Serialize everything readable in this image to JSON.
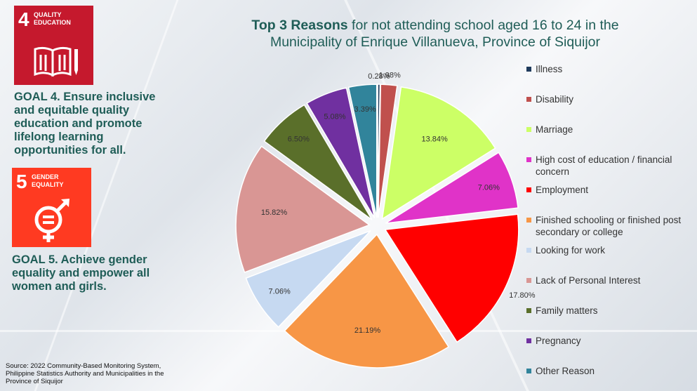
{
  "sdg4": {
    "number": "4",
    "label_line1": "QUALITY",
    "label_line2": "EDUCATION",
    "color": "#c5192d",
    "icon": "book-pencil-icon"
  },
  "sdg5": {
    "number": "5",
    "label_line1": "GENDER",
    "label_line2": "EQUALITY",
    "color": "#ff3a21",
    "icon": "gender-equality-icon"
  },
  "goal4": {
    "lines": [
      "GOAL 4. Ensure inclusive",
      "and equitable quality",
      "education and promote",
      "lifelong learning",
      "opportunities for all."
    ]
  },
  "goal5": {
    "lines": [
      "GOAL 5. Achieve gender",
      "equality and empower all",
      "women and girls."
    ]
  },
  "title": {
    "bold": "Top 3 Reasons",
    "rest_line1": " for not attending school aged 16 to 24 in the",
    "line2": "Municipality of Enrique Villanueva, Province of Siquijor"
  },
  "source": "Source: 2022 Community-Based Monitoring System, Philippine Statistics Authority and Municipalities in the Province of Siquijor",
  "chart_data": {
    "type": "pie",
    "title": "Top 3 Reasons for not attending school aged 16 to 24 in the Municipality of Enrique Villanueva, Province of Siquijor",
    "legend_position": "right",
    "exploded": true,
    "slices": [
      {
        "label": "Illness",
        "value": 0.28,
        "display": "0.28%",
        "color": "#1f3b5c"
      },
      {
        "label": "Disability",
        "value": 1.98,
        "display": "1.98%",
        "color": "#c0504d"
      },
      {
        "label": "Marriage",
        "value": 13.84,
        "display": "13.84%",
        "color": "#ccff66"
      },
      {
        "label": "High cost of education / financial concern",
        "value": 7.06,
        "display": "7.06%",
        "color": "#e033c8"
      },
      {
        "label": "Employment",
        "value": 17.8,
        "display": "17.80%",
        "color": "#ff0000"
      },
      {
        "label": "Finished schooling or finished post secondary or college",
        "value": 21.19,
        "display": "21.19%",
        "color": "#f79646"
      },
      {
        "label": "Looking for work",
        "value": 7.06,
        "display": "7.06%",
        "color": "#c6d9f1"
      },
      {
        "label": "Lack of Personal Interest",
        "value": 15.82,
        "display": "15.82%",
        "color": "#d99694"
      },
      {
        "label": "Family matters",
        "value": 6.5,
        "display": "6.50%",
        "color": "#5a6f2a"
      },
      {
        "label": "Pregnancy",
        "value": 5.08,
        "display": "5.08%",
        "color": "#7030a0"
      },
      {
        "label": "Other Reason",
        "value": 3.39,
        "display": "3.39%",
        "color": "#31849b"
      }
    ]
  }
}
